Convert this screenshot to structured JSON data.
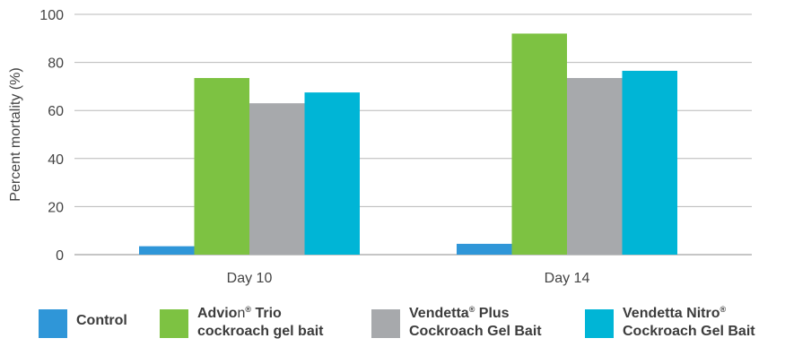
{
  "chart_data": {
    "type": "bar",
    "categories": [
      "Day 10",
      "Day 14"
    ],
    "series": [
      {
        "name": "Control",
        "color": "#2f96d8",
        "values": [
          3.5,
          4.5
        ]
      },
      {
        "name": "Advion® Trio cockroach gel bait",
        "color": "#7dc242",
        "values": [
          73.5,
          92
        ]
      },
      {
        "name": "Vendetta® Plus Cockroach Gel Bait",
        "color": "#a7a9ac",
        "values": [
          63,
          73.5
        ]
      },
      {
        "name": "Vendetta Nitro® Cockroach Gel Bait",
        "color": "#00b5d6",
        "values": [
          67.5,
          76.5
        ]
      }
    ],
    "ylabel": "Percent mortality (%)",
    "ylim": [
      0,
      100
    ],
    "yticks": [
      0,
      20,
      40,
      60,
      80,
      100
    ],
    "grid": true,
    "legend_position": "bottom"
  },
  "legend": {
    "control": "Control",
    "advion_l1_a": "Advio",
    "advion_l1_b": "n",
    "advion_reg": "®",
    "advion_l1_c": " Trio",
    "advion_l2": "cockroach gel bait",
    "vplus_l1_a": "Vendetta",
    "vplus_reg": "®",
    "vplus_l1_b": " Plus",
    "vplus_l2": "Cockroach Gel Bait",
    "vnitro_l1_a": "Vendetta Nitro",
    "vnitro_reg": "®",
    "vnitro_l2": "Cockroach Gel Bait"
  }
}
